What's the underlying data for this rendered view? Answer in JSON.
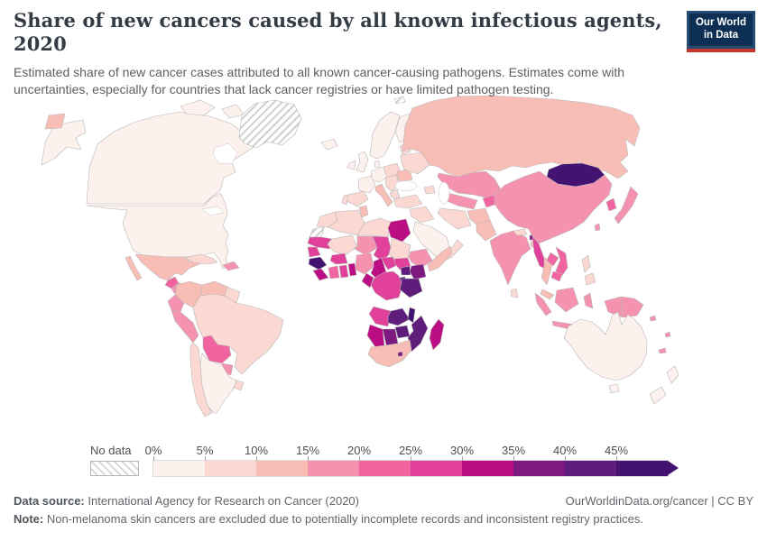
{
  "header": {
    "title": "Share of new cancers caused by all known infectious agents, 2020",
    "subtitle": "Estimated share of new cancer cases attributed to all known cancer-causing pathogens. Estimates come with uncertainties, especially for countries that lack cancer registries or have limited pathogen testing.",
    "logo": {
      "line1": "Our World",
      "line2": "in Data",
      "bg": "#254d74",
      "inner_bg": "#0e2f54",
      "accent": "#c8352c"
    }
  },
  "legend": {
    "no_data_label": "No data",
    "tick_labels": [
      "0%",
      "5%",
      "10%",
      "15%",
      "20%",
      "25%",
      "30%",
      "35%",
      "40%",
      "45%"
    ],
    "bin_colors": [
      "#fdf1ed",
      "#fbd8d2",
      "#f8beb6",
      "#f492b0",
      "#f2649f",
      "#e2419b",
      "#bc0e84",
      "#7c1a80",
      "#5e1c7b",
      "#441270"
    ],
    "bin_size": 5
  },
  "footer": {
    "data_source_label": "Data source:",
    "data_source_value": " International Agency for Research on Cancer (2020)",
    "credit": "OurWorldinData.org/cancer | CC BY",
    "note_label": "Note:",
    "note_value": " Non-melanoma skin cancers are excluded due to potentially incomplete records and inconsistent registry practices."
  },
  "chart_data": {
    "type": "choropleth",
    "title": "Share of new cancers caused by all known infectious agents, 2020",
    "year": 2020,
    "unit": "%",
    "bin_edges": [
      0,
      5,
      10,
      15,
      20,
      25,
      30,
      35,
      40,
      45
    ],
    "legend_position": "bottom",
    "no_data_style": "hatched",
    "regions": {
      "greenland": "no-data",
      "western-sahara": "no-data",
      "svalbard": "no-data",
      "canada": 3,
      "united-states": 3,
      "mexico": 12,
      "guatemala": 23,
      "honduras-nicaragua": 17,
      "costa-rica-panama": 16,
      "cuba": 8,
      "hispaniola": 18,
      "colombia": 13,
      "venezuela": 12,
      "guyanas": 8,
      "ecuador": 17,
      "peru": 17,
      "brazil": 7,
      "bolivia": 22,
      "paraguay": 17,
      "chile": 8,
      "argentina": 4,
      "uruguay": 6,
      "iceland": 3,
      "ireland": 3,
      "united-kingdom": 3,
      "norway-sweden": 3,
      "finland": 4,
      "baltics": 6,
      "denmark": 4,
      "germany-central-europe": 4,
      "poland-czechia": 6,
      "france": 4,
      "spain": 7,
      "portugal": 8,
      "italy": 10,
      "balkans": 9,
      "greece": 8,
      "romania-hungary": 10,
      "ukraine-belarus": 8,
      "russia": 12,
      "kazakhstan": 16,
      "uzbekistan-turkmenistan": 15,
      "kyrgyzstan-tajikistan": 23,
      "caucasus": 9,
      "turkey": 8,
      "syria-iraq": 8,
      "iran": 9,
      "saudi-arabia": 3,
      "yemen-oman": 7,
      "afghanistan": 10,
      "pakistan": 10,
      "india": 18,
      "nepal": 8,
      "bhutan": 37,
      "bangladesh": 12,
      "sri-lanka": 7,
      "myanmar": 27,
      "thailand": 13,
      "laos": 21,
      "vietnam": 22,
      "cambodia": 21,
      "malaysia": 13,
      "china": 18,
      "mongolia": 47,
      "south-korea": 21,
      "japan": 17,
      "taiwan": 17,
      "philippines": 9,
      "indonesia": 17,
      "papua-new-guinea": 17,
      "melanesia": 17,
      "australia": 3,
      "new-zealand": 4,
      "morocco": 8,
      "algeria": 7,
      "tunisia": 10,
      "libya": 7,
      "egypt": 32,
      "mauritania": 27,
      "mali": 8,
      "niger": 16,
      "chad": 26,
      "sudan": 8,
      "senegal-gambia": 28,
      "guinea": 46,
      "sierra-leone-liberia": 33,
      "ivory-coast": 21,
      "ghana": 26,
      "togo-benin": 33,
      "burkina-faso": 27,
      "nigeria": 19,
      "cameroon": 34,
      "central-african-republic": 27,
      "south-sudan": 28,
      "ethiopia": 15,
      "somalia": 13,
      "kenya": 37,
      "uganda": 41,
      "rwanda-burundi": 46,
      "dr-congo": 28,
      "congo-gabon": 31,
      "tanzania": 44,
      "angola": 27,
      "zambia": 41,
      "malawi": 46,
      "mozambique": 44,
      "zimbabwe": 41,
      "botswana": 38,
      "namibia": 31,
      "south-africa": 11,
      "lesotho": 36,
      "madagascar": 31
    }
  }
}
